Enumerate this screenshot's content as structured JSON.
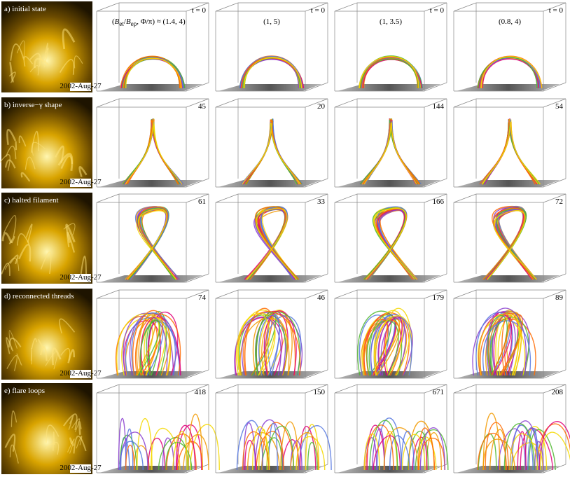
{
  "column_headers": [
    [
      "(",
      "B",
      "et",
      "/",
      "B",
      "ep",
      ", Φ/π) ≈ (1.4, 4)"
    ],
    "(1, 5)",
    "(1, 3.5)",
    "(0.8, 4)"
  ],
  "rows": [
    {
      "label": "a) initial state",
      "image_stamp": "2002-Aug-27",
      "times": [
        "t = 0",
        "t = 0",
        "t = 0",
        "t = 0"
      ]
    },
    {
      "label": "b) inverse−γ shape",
      "image_stamp": "2002-Aug-27",
      "times": [
        "45",
        "20",
        "144",
        "54"
      ]
    },
    {
      "label": "c) halted filament",
      "image_stamp": "2002-Aug-27",
      "times": [
        "61",
        "33",
        "166",
        "72"
      ]
    },
    {
      "label": "d) reconnected threads",
      "image_stamp": "2002-Aug-27",
      "times": [
        "74",
        "46",
        "179",
        "89"
      ]
    },
    {
      "label": "e) flare loops",
      "image_stamp": "2002-Aug-27",
      "times": [
        "418",
        "150",
        "671",
        "208"
      ]
    }
  ]
}
